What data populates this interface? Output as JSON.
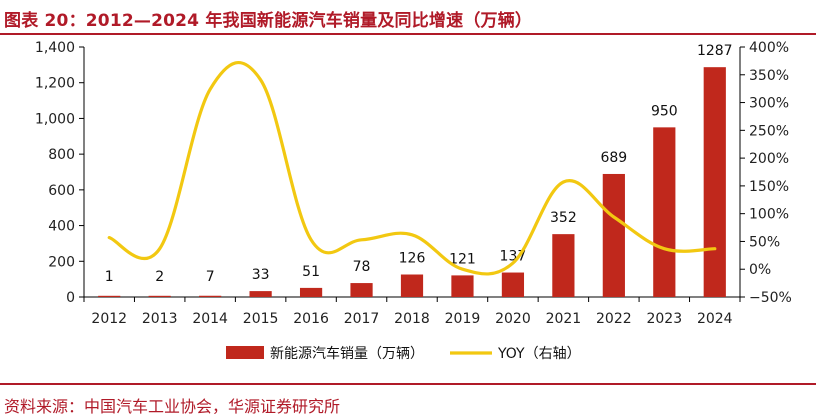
{
  "header": {
    "title": "图表 20：2012—2024 年我国新能源汽车销量及同比增速（万辆）"
  },
  "footer": {
    "source": "资料来源：中国汽车工业协会，华源证券研究所"
  },
  "colors": {
    "bar": "#c0281c",
    "line": "#f2c811",
    "accent": "#b01a28",
    "axis": "#000000"
  },
  "chart_data": {
    "type": "bar",
    "categories": [
      "2012",
      "2013",
      "2014",
      "2015",
      "2016",
      "2017",
      "2018",
      "2019",
      "2020",
      "2021",
      "2022",
      "2023",
      "2024"
    ],
    "series": [
      {
        "name": "新能源汽车销量（万辆）",
        "type": "bar",
        "axis": "left",
        "values": [
          1,
          2,
          7,
          33,
          51,
          78,
          126,
          121,
          137,
          352,
          689,
          950,
          1287
        ],
        "labels": [
          "1",
          "2",
          "7",
          "33",
          "51",
          "78",
          "126",
          "121",
          "137",
          "352",
          "689",
          "950",
          "1287"
        ]
      },
      {
        "name": "YOY（右轴）",
        "type": "line",
        "axis": "right",
        "values": [
          57,
          37,
          324,
          341,
          53,
          53,
          62,
          0,
          11,
          157,
          94,
          37,
          37
        ]
      }
    ],
    "left_axis": {
      "min": 0,
      "max": 1400,
      "ticks": [
        "0",
        "200",
        "400",
        "600",
        "800",
        "1,000",
        "1,200",
        "1,400"
      ]
    },
    "right_axis": {
      "min": -50,
      "max": 400,
      "ticks": [
        "−50%",
        "0%",
        "50%",
        "100%",
        "150%",
        "200%",
        "250%",
        "300%",
        "350%",
        "400%"
      ]
    },
    "legend": {
      "position": "bottom-center"
    },
    "grid": false
  }
}
